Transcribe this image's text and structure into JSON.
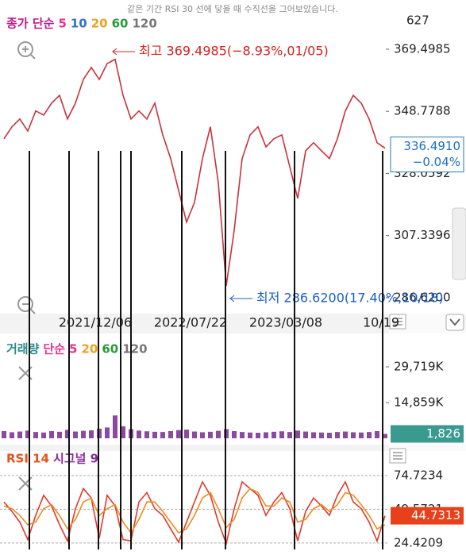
{
  "caption": "같은 기간 RSI 30 선에 닿을 때 수직선을 그어보았습니다.",
  "chart_data": [
    {
      "type": "line",
      "top_label": "627",
      "legend": [
        {
          "text": "종가 단순",
          "color": "#c0178c"
        },
        {
          "text": "5",
          "color": "#e8318a"
        },
        {
          "text": "10",
          "color": "#2f6fd6"
        },
        {
          "text": "20",
          "color": "#f0a020"
        },
        {
          "text": "60",
          "color": "#2a9a3a"
        },
        {
          "text": "120",
          "color": "#777777"
        }
      ],
      "categories": [
        null,
        null,
        null,
        null,
        null,
        null,
        null,
        null,
        null,
        null,
        null,
        null,
        "2021/12/06",
        null,
        null,
        null,
        null,
        null,
        null,
        null,
        null,
        null,
        null,
        null,
        "2022/07/22",
        null,
        null,
        null,
        null,
        null,
        null,
        null,
        null,
        null,
        null,
        null,
        "2023/03/08",
        null,
        null,
        null,
        null,
        null,
        null,
        null,
        null,
        null,
        null,
        null,
        "10/19"
      ],
      "series": [
        {
          "name": "종가",
          "color": "#c8323c",
          "values": [
            339.6,
            343.6,
            346.2,
            342.2,
            348.9,
            347.5,
            351.5,
            354.1,
            346.2,
            351.5,
            359.4,
            363.4,
            359.4,
            364.7,
            366.1,
            354.1,
            346.2,
            348.9,
            346.2,
            351.5,
            340.9,
            333,
            322.4,
            311.8,
            318.4,
            333,
            343.6,
            325,
            290.6,
            309.1,
            333,
            340.9,
            343.6,
            336.9,
            339.6,
            340.9,
            330.3,
            319.7,
            335.6,
            338.3,
            335.6,
            333,
            339.6,
            348.9,
            354.1,
            351.5,
            346.2,
            338.3,
            336.491
          ]
        }
      ],
      "ylim": [
        281.3,
        380.6
      ],
      "yticks": [
        369.4985,
        348.7788,
        328.0592,
        307.3396,
        {
          "value": 286.62,
          "label": "286.6200"
        }
      ],
      "last_price": {
        "value": 336.491,
        "label": "336.4910"
      },
      "last_change": {
        "value": -0.04,
        "label": "−0.04%"
      },
      "annotations": [
        {
          "text": "최고 369.4985(−8.93%,01/05)",
          "color": "#d62020"
        },
        {
          "text": "최저 286.6200(17.40%,10/18)",
          "color": "#1a5fc8"
        }
      ]
    },
    {
      "type": "bar",
      "legend": [
        {
          "text": "거래량",
          "color": "#2a8a8a"
        },
        {
          "text": "단순",
          "color": "#e8318a"
        },
        {
          "text": "5",
          "color": "#e8318a"
        },
        {
          "text": "20",
          "color": "#f0a020"
        },
        {
          "text": "60",
          "color": "#2a9a3a"
        },
        {
          "text": "120",
          "color": "#777777"
        }
      ],
      "color": "#8a4aa0",
      "values": [
        3000,
        2500,
        2800,
        3200,
        2600,
        2400,
        3000,
        2700,
        3500,
        2800,
        3100,
        3300,
        4000,
        4500,
        9500,
        5000,
        3800,
        3200,
        2900,
        2700,
        2600,
        3000,
        3400,
        3600,
        2800,
        2500,
        2700,
        3100,
        3800,
        3000,
        2600,
        2400,
        2300,
        2500,
        2700,
        2900,
        2600,
        3200,
        2800,
        2500,
        2400,
        2300,
        2600,
        2800,
        2500,
        2400,
        2600,
        3000,
        1826
      ],
      "ylim": [
        0,
        43600
      ],
      "yticks": [
        {
          "value": 29719,
          "label": "29,719K"
        },
        {
          "value": 14859,
          "label": "14,859K"
        }
      ],
      "last_volume": {
        "value": 1826,
        "label": "1,826"
      }
    },
    {
      "type": "line",
      "legend": [
        {
          "text": "RSI 14",
          "color": "#e8501a"
        },
        {
          "text": "시그널 9",
          "color": "#8a2a9a"
        }
      ],
      "series": [
        {
          "name": "RSI 14",
          "color": "#e03a2a",
          "values": [
            55,
            48,
            40,
            27,
            45,
            60,
            52,
            38,
            26,
            50,
            65,
            58,
            28,
            60,
            52,
            27,
            26,
            55,
            62,
            50,
            45,
            35,
            25,
            40,
            55,
            70,
            60,
            40,
            24,
            50,
            70,
            65,
            60,
            45,
            55,
            62,
            50,
            26,
            48,
            58,
            52,
            45,
            60,
            70,
            55,
            50,
            40,
            26,
            44.7313
          ]
        },
        {
          "name": "시그널 9",
          "color": "#f08a20",
          "values": [
            52,
            50,
            45,
            38,
            40,
            50,
            53,
            45,
            35,
            42,
            55,
            58,
            45,
            50,
            53,
            40,
            32,
            42,
            55,
            55,
            48,
            40,
            32,
            35,
            45,
            58,
            62,
            50,
            36,
            42,
            58,
            65,
            62,
            52,
            52,
            58,
            55,
            40,
            42,
            50,
            53,
            48,
            53,
            62,
            60,
            53,
            45,
            35,
            38
          ]
        }
      ],
      "ylim": [
        15.5,
        93
      ],
      "yticks": [
        74.7234,
        49.5721,
        24.4209
      ],
      "grid": true
    }
  ]
}
